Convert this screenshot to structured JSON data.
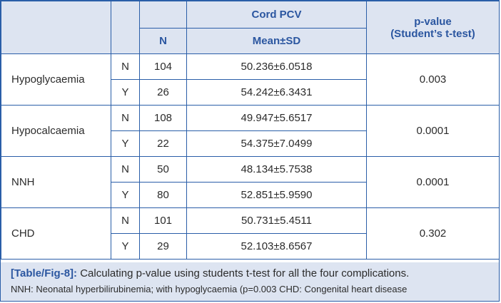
{
  "table": {
    "header": {
      "cord_pcv": "Cord PCV",
      "n_label": "N",
      "mean_sd": "Mean±SD",
      "pvalue_line1": "p-value",
      "pvalue_line2": "(Student’s t-test)"
    },
    "groups": [
      {
        "name": "Hypoglycaemia",
        "rows": [
          {
            "flag": "N",
            "n": "104",
            "mean_sd": "50.236±6.0518"
          },
          {
            "flag": "Y",
            "n": "26",
            "mean_sd": "54.242±6.3431"
          }
        ],
        "p_value": "0.003"
      },
      {
        "name": "Hypocalcaemia",
        "rows": [
          {
            "flag": "N",
            "n": "108",
            "mean_sd": "49.947±5.6517"
          },
          {
            "flag": "Y",
            "n": "22",
            "mean_sd": "54.375±7.0499"
          }
        ],
        "p_value": "0.0001"
      },
      {
        "name": "NNH",
        "rows": [
          {
            "flag": "N",
            "n": "50",
            "mean_sd": "48.134±5.7538"
          },
          {
            "flag": "Y",
            "n": "80",
            "mean_sd": "52.851±5.9590"
          }
        ],
        "p_value": "0.0001"
      },
      {
        "name": "CHD",
        "rows": [
          {
            "flag": "N",
            "n": "101",
            "mean_sd": "50.731±5.4511"
          },
          {
            "flag": "Y",
            "n": "29",
            "mean_sd": "52.103±8.6567"
          }
        ],
        "p_value": "0.302"
      }
    ]
  },
  "caption": {
    "label": "[Table/Fig-8]:",
    "title": "Calculating p-value using students t-test for all the four complications.",
    "note": "NNH: Neonatal hyperbilirubinemia; with hypoglycaemia (p=0.003 CHD: Congenital heart disease"
  }
}
